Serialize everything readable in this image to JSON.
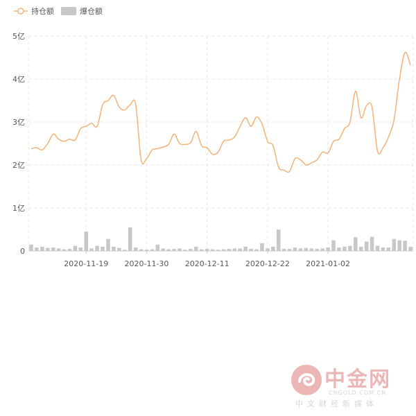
{
  "chart_data": {
    "type": "line",
    "legend": [
      {
        "name": "持仓额",
        "kind": "line",
        "color": "#f2b27a"
      },
      {
        "name": "爆仓额",
        "kind": "bar",
        "color": "#c8c8c8"
      }
    ],
    "legend_position": "top-left",
    "y_ticks": [
      "0",
      "1亿",
      "2亿",
      "3亿",
      "4亿",
      "5亿"
    ],
    "ylim": [
      0,
      5
    ],
    "y_unit": "亿",
    "x_ticks": [
      {
        "label": "2020-11-19",
        "index": 10
      },
      {
        "label": "2020-11-30",
        "index": 21
      },
      {
        "label": "2020-12-11",
        "index": 32
      },
      {
        "label": "2020-12-22",
        "index": 43
      },
      {
        "label": "2021-01-02",
        "index": 54
      }
    ],
    "grid": true,
    "series": [
      {
        "type": "line",
        "values": [
          2.38,
          2.4,
          2.35,
          2.5,
          2.72,
          2.6,
          2.55,
          2.6,
          2.58,
          2.85,
          2.9,
          2.97,
          2.9,
          3.4,
          3.5,
          3.62,
          3.35,
          3.28,
          3.4,
          3.42,
          2.12,
          2.15,
          2.35,
          2.38,
          2.42,
          2.48,
          2.72,
          2.5,
          2.48,
          2.52,
          2.78,
          2.45,
          2.4,
          2.25,
          2.3,
          2.55,
          2.58,
          2.65,
          2.9,
          3.1,
          2.9,
          3.12,
          2.95,
          2.55,
          2.45,
          1.95,
          1.88,
          1.85,
          2.15,
          2.12,
          2.0,
          2.05,
          2.12,
          2.3,
          2.28,
          2.55,
          2.6,
          2.85,
          3.0,
          3.72,
          3.1,
          3.38,
          3.35,
          2.32,
          2.4,
          2.65,
          3.05,
          4.0,
          4.62,
          4.32
        ],
        "color": "#f2b27a"
      },
      {
        "type": "bar",
        "values": [
          0.15,
          0.08,
          0.1,
          0.07,
          0.08,
          0.06,
          0.04,
          0.05,
          0.12,
          0.08,
          0.45,
          0.06,
          0.12,
          0.1,
          0.28,
          0.1,
          0.07,
          0.03,
          0.55,
          0.08,
          0.04,
          0.03,
          0.04,
          0.15,
          0.06,
          0.04,
          0.05,
          0.06,
          0.03,
          0.05,
          0.1,
          0.04,
          0.05,
          0.04,
          0.03,
          0.04,
          0.05,
          0.06,
          0.06,
          0.1,
          0.05,
          0.04,
          0.18,
          0.06,
          0.1,
          0.5,
          0.05,
          0.05,
          0.08,
          0.06,
          0.07,
          0.06,
          0.05,
          0.06,
          0.08,
          0.25,
          0.08,
          0.1,
          0.12,
          0.32,
          0.1,
          0.22,
          0.33,
          0.12,
          0.08,
          0.08,
          0.28,
          0.25,
          0.24,
          0.1
        ],
        "color": "#c8c8c8"
      }
    ]
  },
  "watermark": {
    "title": "中金网",
    "url": "CNGOLD.COM.CN",
    "subtitle": "中文财经新媒体",
    "color": "#c8322d"
  }
}
